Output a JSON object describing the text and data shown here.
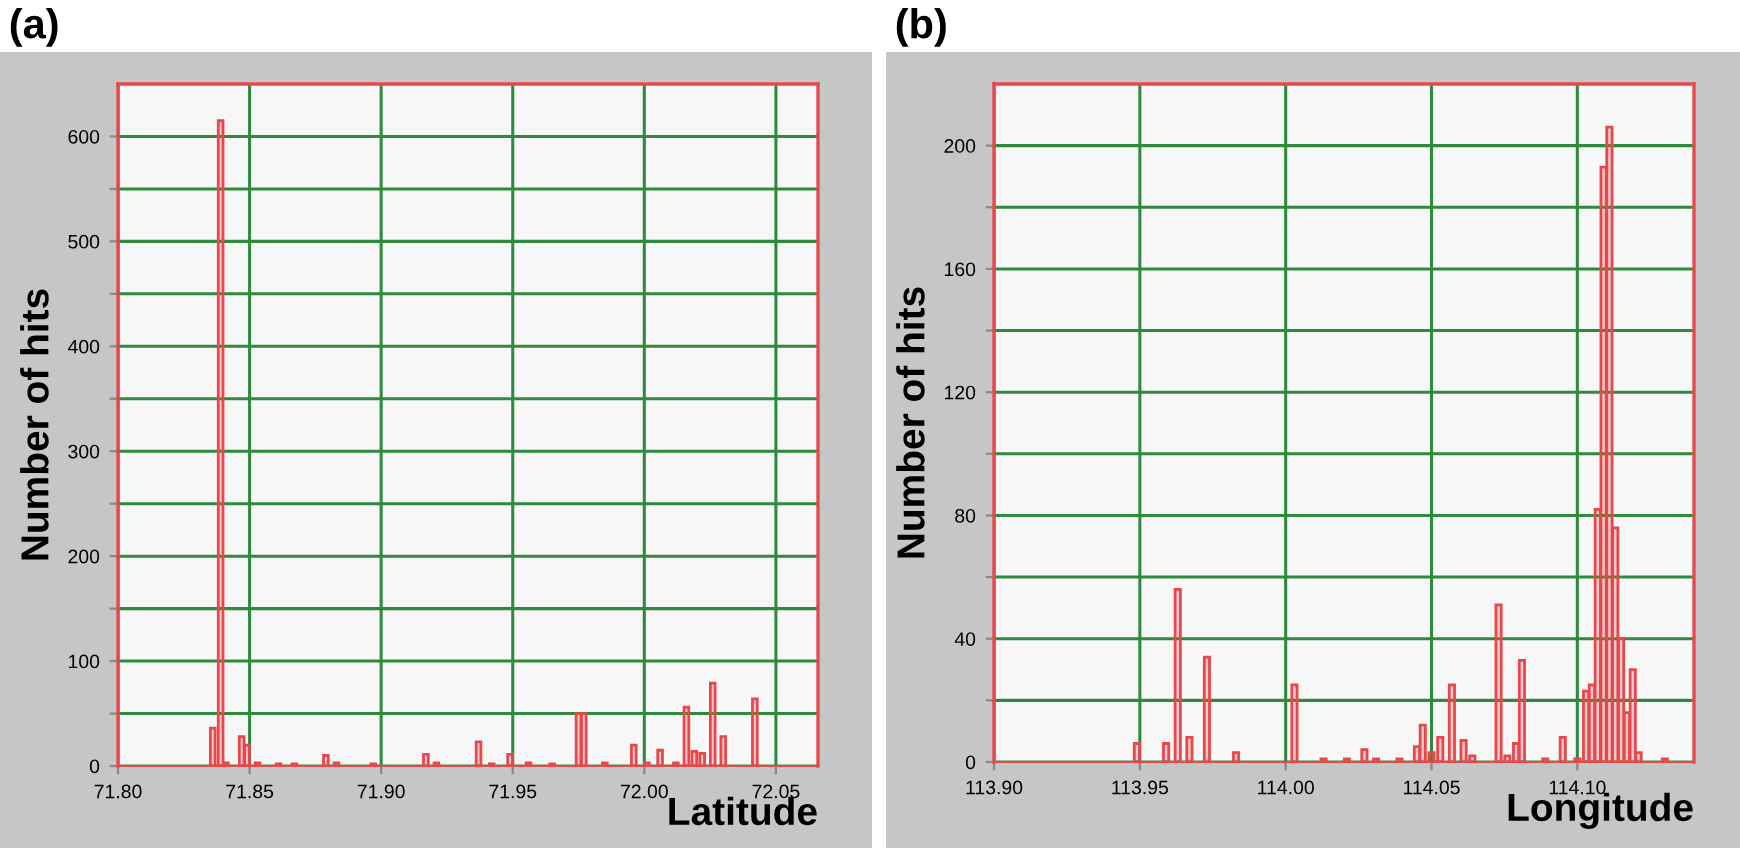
{
  "chart_data": [
    {
      "type": "bar",
      "title": "(a)",
      "xlabel": "Latitude",
      "ylabel": "Number of hits",
      "series": [
        {
          "color": "#e8474c",
          "x": [
            71.836,
            71.839,
            71.841,
            71.847,
            71.849,
            71.853,
            71.861,
            71.867,
            71.879,
            71.883,
            71.897,
            71.917,
            71.921,
            71.937,
            71.942,
            71.949,
            71.956,
            71.965,
            71.975,
            71.977,
            71.985,
            71.996,
            72.001,
            72.006,
            72.012,
            72.016,
            72.019,
            72.022,
            72.026,
            72.03,
            72.042
          ],
          "values": [
            36,
            615,
            3,
            28,
            20,
            3,
            2,
            2,
            10,
            3,
            2,
            11,
            3,
            23,
            2,
            11,
            3,
            2,
            50,
            50,
            3,
            20,
            3,
            15,
            3,
            56,
            14,
            12,
            79,
            28,
            64
          ]
        }
      ],
      "xlim": [
        71.8,
        72.066
      ],
      "xticks": [
        {
          "value": 71.8,
          "label": "71.80"
        },
        71.85,
        {
          "value": 71.9,
          "label": "71.90"
        },
        71.95,
        {
          "value": 72.0,
          "label": "72.00"
        },
        72.05
      ],
      "ylim": [
        0,
        650
      ],
      "yticks": [
        0,
        {
          "value": 50,
          "label": null
        },
        100,
        {
          "value": 150,
          "label": null
        },
        200,
        {
          "value": 250,
          "label": null
        },
        300,
        {
          "value": 350,
          "label": null
        },
        400,
        {
          "value": 450,
          "label": null
        },
        500,
        {
          "value": 550,
          "label": null
        },
        600
      ],
      "grid": true
    },
    {
      "type": "bar",
      "title": "(b)",
      "xlabel": "Longitude",
      "ylabel": "Number of hits",
      "series": [
        {
          "color": "#e8474c",
          "x": [
            113.949,
            113.959,
            113.963,
            113.967,
            113.973,
            113.983,
            114.003,
            114.013,
            114.021,
            114.027,
            114.031,
            114.039,
            114.045,
            114.047,
            114.05,
            114.053,
            114.057,
            114.061,
            114.064,
            114.073,
            114.076,
            114.079,
            114.081,
            114.089,
            114.095,
            114.1,
            114.103,
            114.105,
            114.107,
            114.109,
            114.111,
            114.113,
            114.115,
            114.117,
            114.119,
            114.121,
            114.13
          ],
          "values": [
            6,
            6,
            56,
            8,
            34,
            3,
            25,
            1,
            1,
            4,
            1,
            1,
            5,
            12,
            3,
            8,
            25,
            7,
            2,
            51,
            2,
            6,
            33,
            1,
            8,
            1,
            23,
            25,
            82,
            193,
            206,
            76,
            40,
            16,
            30,
            3,
            1
          ]
        }
      ],
      "xlim": [
        113.9,
        114.14
      ],
      "xticks": [
        {
          "value": 113.9,
          "label": "113.90"
        },
        113.95,
        {
          "value": 114.0,
          "label": "114.00"
        },
        114.05,
        {
          "value": 114.1,
          "label": "114.10"
        }
      ],
      "ylim": [
        0,
        220
      ],
      "yticks": [
        0,
        {
          "value": 20,
          "label": null
        },
        40,
        {
          "value": 60,
          "label": null
        },
        80,
        {
          "value": 100,
          "label": null
        },
        120,
        {
          "value": 140,
          "label": null
        },
        160,
        {
          "value": 180,
          "label": null
        },
        200
      ],
      "grid": true
    }
  ]
}
